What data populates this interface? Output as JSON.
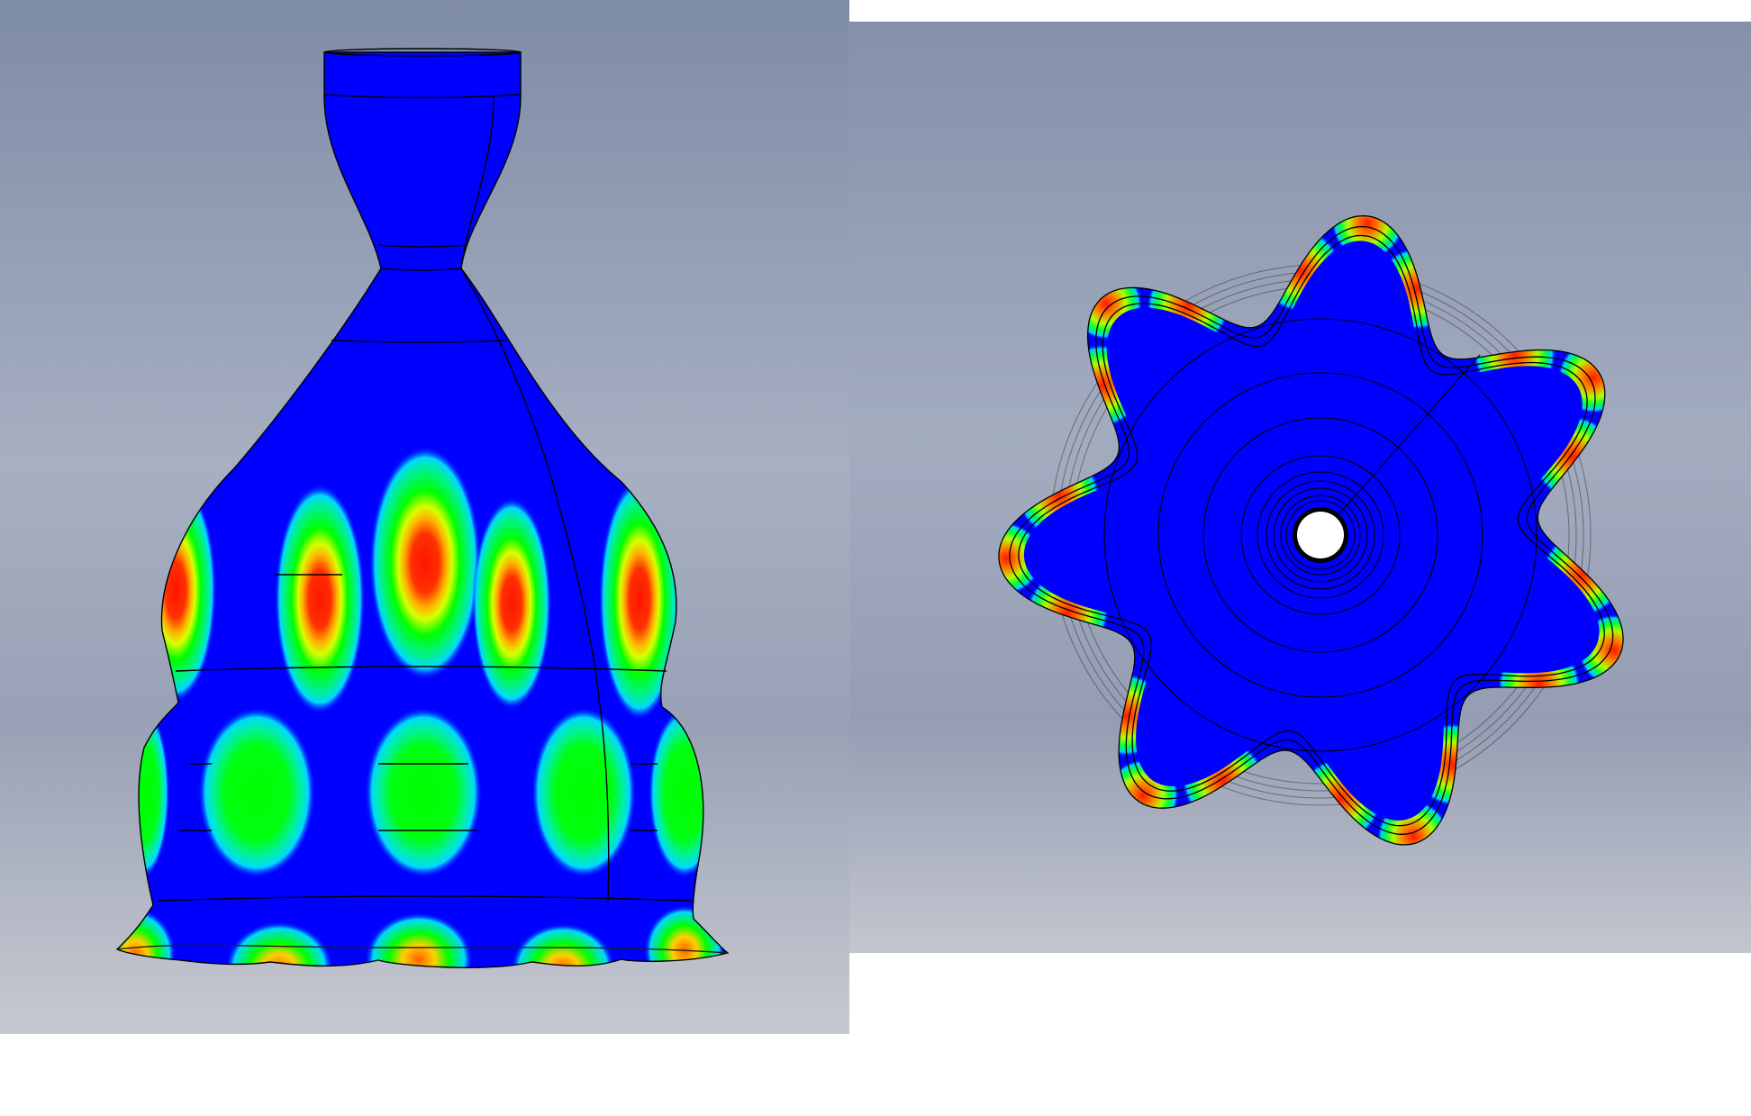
{
  "views": [
    {
      "name": "side-view"
    },
    {
      "name": "bottom-view"
    }
  ],
  "colors": {
    "background_top": "#7f8ca6",
    "background_bottom": "#c7c9d0",
    "low": "#0000ff",
    "mid_low": "#00e0ff",
    "mid": "#00ff00",
    "mid_high": "#ffff00",
    "high": "#ff0000",
    "outline": "#000000"
  },
  "mode_shape": {
    "circumferential_lobes": 7
  }
}
